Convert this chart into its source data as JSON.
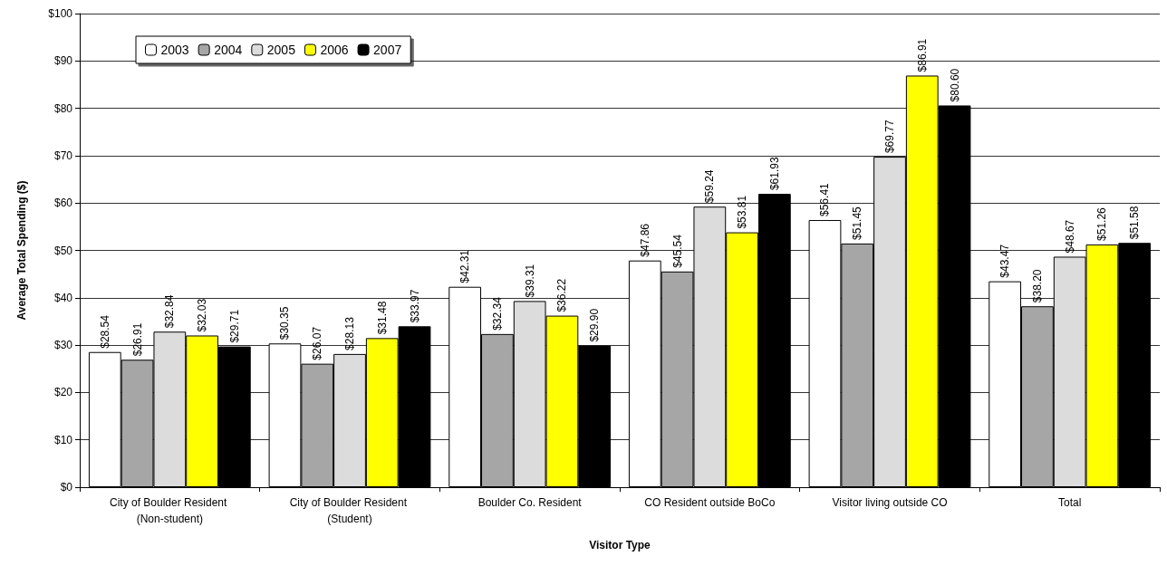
{
  "chart_data": {
    "type": "bar",
    "xlabel": "Visitor Type",
    "ylabel": "Average Total Spending ($)",
    "categories": [
      "City of Boulder Resident (Non-student)",
      "City of Boulder Resident (Student)",
      "Boulder Co. Resident",
      "CO Resident outside BoCo",
      "Visitor living outside CO",
      "Total"
    ],
    "series": [
      {
        "name": "2003",
        "color": "#ffffff",
        "values": [
          28.54,
          30.35,
          42.31,
          47.86,
          56.41,
          43.47
        ],
        "value_labels": [
          "$28.54",
          "$30.35",
          "$42.31",
          "$47.86",
          "$56.41",
          "$43.47"
        ]
      },
      {
        "name": "2004",
        "color": "#a6a6a6",
        "values": [
          26.91,
          26.07,
          32.34,
          45.54,
          51.45,
          38.2
        ],
        "value_labels": [
          "$26.91",
          "$26.07",
          "$32.34",
          "$45.54",
          "$51.45",
          "$38.20"
        ]
      },
      {
        "name": "2005",
        "color": "#dcdcdc",
        "values": [
          32.84,
          28.13,
          39.31,
          59.24,
          69.77,
          48.67
        ],
        "value_labels": [
          "$32.84",
          "$28.13",
          "$39.31",
          "$59.24",
          "$69.77",
          "$48.67"
        ]
      },
      {
        "name": "2006",
        "color": "#ffff00",
        "values": [
          32.03,
          31.48,
          36.22,
          53.81,
          86.91,
          51.26
        ],
        "value_labels": [
          "$32.03",
          "$31.48",
          "$36.22",
          "$53.81",
          "$86.91",
          "$51.26"
        ]
      },
      {
        "name": "2007",
        "color": "#000000",
        "values": [
          29.71,
          33.97,
          29.9,
          61.93,
          80.6,
          51.58
        ],
        "value_labels": [
          "$29.71",
          "$33.97",
          "$29.90",
          "$61.93",
          "$80.60",
          "$51.58"
        ]
      }
    ],
    "ylim": [
      0,
      100
    ],
    "yticks": [
      {
        "value": 0,
        "label": "$0"
      },
      {
        "value": 10,
        "label": "$10"
      },
      {
        "value": 20,
        "label": "$20"
      },
      {
        "value": 30,
        "label": "$30"
      },
      {
        "value": 40,
        "label": "$40"
      },
      {
        "value": 50,
        "label": "$50"
      },
      {
        "value": 60,
        "label": "$60"
      },
      {
        "value": 70,
        "label": "$70"
      },
      {
        "value": 80,
        "label": "$80"
      },
      {
        "value": 90,
        "label": "$90"
      },
      {
        "value": 100,
        "label": "$100"
      }
    ],
    "grid": "y",
    "legend": "top left"
  }
}
